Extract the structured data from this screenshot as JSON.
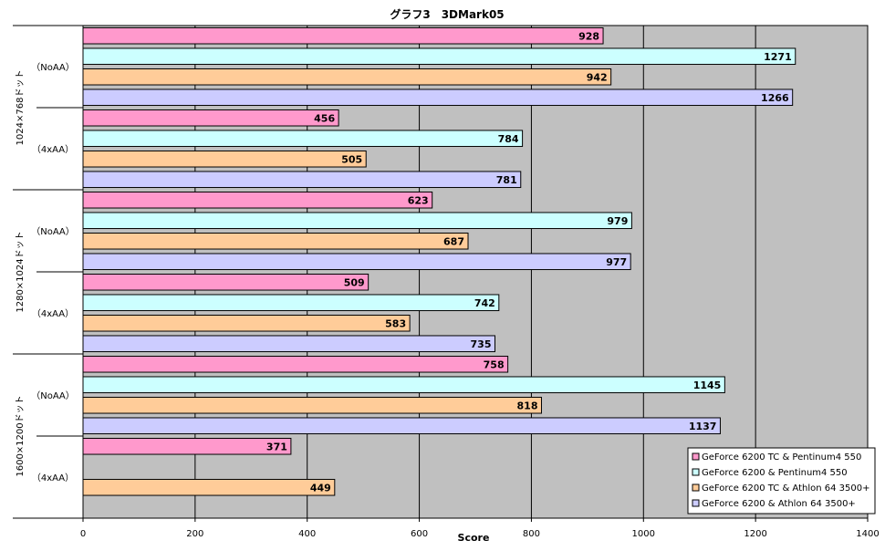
{
  "chart_data": {
    "type": "bar",
    "orientation": "horizontal",
    "title": "グラフ3　3DMark05",
    "xlabel": "Score",
    "ylabel": "",
    "xlim": [
      0,
      1400
    ],
    "xticks": [
      0,
      200,
      400,
      600,
      800,
      1000,
      1200,
      1400
    ],
    "grid": true,
    "legend_position": "bottom-right",
    "groups": [
      {
        "label": "1024×768ドット",
        "subgroups": [
          "（NoAA）",
          "（4xAA）"
        ]
      },
      {
        "label": "1280×1024ドット",
        "subgroups": [
          "（NoAA）",
          "（4xAA）"
        ]
      },
      {
        "label": "1600×1200ドット",
        "subgroups": [
          "（NoAA）",
          "（4xAA）"
        ]
      }
    ],
    "categories": [
      "1024×768ドット（NoAA）",
      "1024×768ドット（4xAA）",
      "1280×1024ドット（NoAA）",
      "1280×1024ドット（4xAA）",
      "1600×1200ドット（NoAA）",
      "1600×1200ドット（4xAA）"
    ],
    "series": [
      {
        "name": "GeForce 6200 TC & Pentinum4 550",
        "color": "#ff99cc",
        "values": [
          928,
          456,
          623,
          509,
          758,
          371
        ]
      },
      {
        "name": "GeForce 6200 & Pentinum4 550",
        "color": "#ccffff",
        "values": [
          1271,
          784,
          979,
          742,
          1145,
          null
        ]
      },
      {
        "name": "GeForce 6200 TC & Athlon 64 3500+",
        "color": "#ffcc99",
        "values": [
          942,
          505,
          687,
          583,
          818,
          449
        ]
      },
      {
        "name": "GeForce 6200 & Athlon 64 3500+",
        "color": "#ccccff",
        "values": [
          1266,
          781,
          977,
          735,
          1137,
          null
        ]
      }
    ],
    "plot_background": "#c0c0c0"
  }
}
